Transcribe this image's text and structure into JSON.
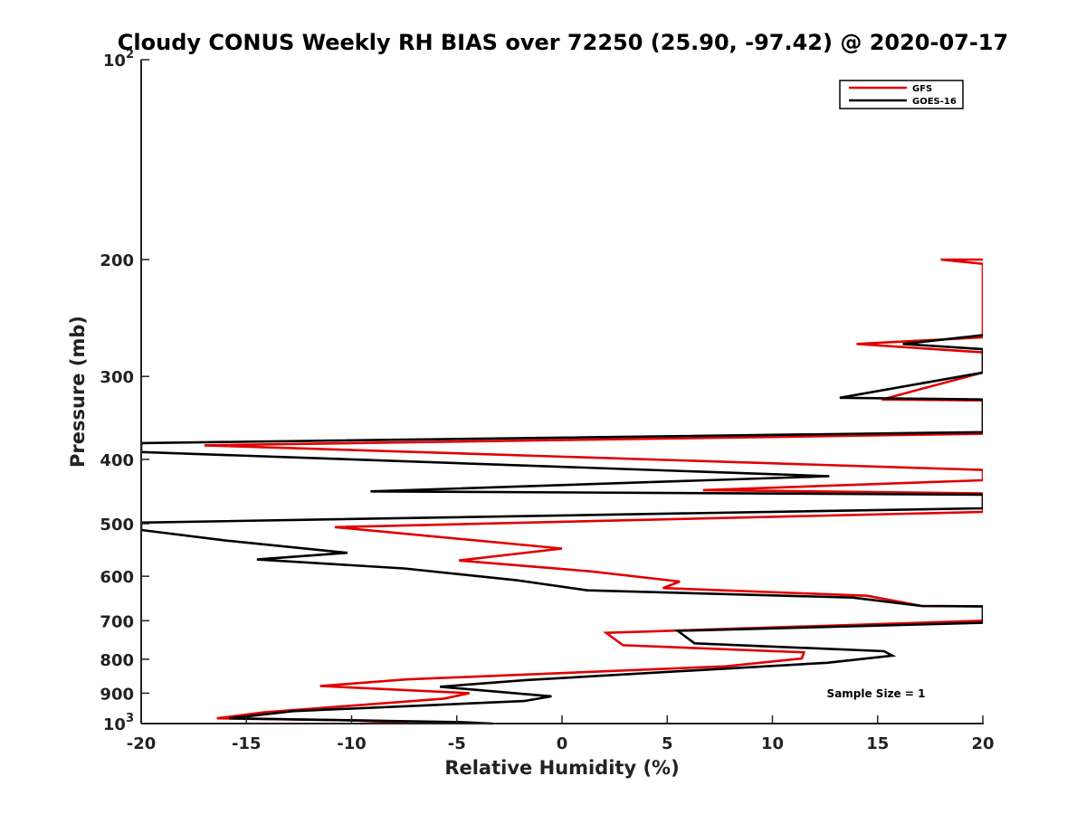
{
  "chart_data": {
    "type": "line",
    "title": "Cloudy CONUS Weekly RH BIAS over 72250 (25.90, -97.42) @ 2020-07-17",
    "xlabel": "Relative Humidity (%)",
    "ylabel": "Pressure (mb)",
    "xlim": [
      -20,
      20
    ],
    "ylim": [
      100,
      1000
    ],
    "y_scale": "log",
    "y_reversed": true,
    "x_ticks": [
      "-20",
      "-15",
      "-10",
      "-5",
      "0",
      "5",
      "10",
      "15",
      "20"
    ],
    "y_ticks": [
      {
        "value": 100,
        "base": "10",
        "exp": "2"
      },
      {
        "value": 200,
        "label": "200"
      },
      {
        "value": 300,
        "label": "300"
      },
      {
        "value": 400,
        "label": "400"
      },
      {
        "value": 500,
        "label": "500"
      },
      {
        "value": 600,
        "label": "600"
      },
      {
        "value": 700,
        "label": "700"
      },
      {
        "value": 800,
        "label": "800"
      },
      {
        "value": 900,
        "label": "900"
      },
      {
        "value": 1000,
        "base": "10",
        "exp": "3"
      }
    ],
    "grid": false,
    "legend_position": "top-right",
    "annotation": "Sample Size = 1",
    "series": [
      {
        "name": "GFS",
        "color": "#e00000",
        "points": [
          [
            20,
            200
          ],
          [
            18,
            200
          ],
          [
            20,
            203
          ],
          [
            20,
            262
          ],
          [
            14,
            268
          ],
          [
            20,
            276
          ],
          [
            20,
            296
          ],
          [
            15.2,
            325
          ],
          [
            20,
            326
          ],
          [
            20,
            366
          ],
          [
            -17,
            381
          ],
          [
            20,
            415
          ],
          [
            20,
            430
          ],
          [
            6.7,
            445
          ],
          [
            20,
            450
          ],
          [
            20,
            480
          ],
          [
            -10.8,
            506
          ],
          [
            0,
            545
          ],
          [
            -4.9,
            568
          ],
          [
            1.4,
            590
          ],
          [
            5.6,
            611
          ],
          [
            4.8,
            625
          ],
          [
            14.5,
            642
          ],
          [
            17.1,
            665
          ],
          [
            20,
            666
          ],
          [
            20,
            700
          ],
          [
            2.1,
            730
          ],
          [
            2.9,
            762
          ],
          [
            11.5,
            781
          ],
          [
            11.4,
            798
          ],
          [
            7.8,
            820
          ],
          [
            -7.4,
            858
          ],
          [
            -11.5,
            878
          ],
          [
            -4.4,
            900
          ],
          [
            -5.6,
            917
          ],
          [
            -14.2,
            962
          ],
          [
            -16.4,
            982
          ],
          [
            -8.8,
            990
          ],
          [
            -7.3,
            995
          ],
          [
            -9.6,
            1000
          ]
        ]
      },
      {
        "name": "GOES-16",
        "color": "#000000",
        "points": [
          [
            20,
            260
          ],
          [
            16.2,
            268
          ],
          [
            20,
            273
          ],
          [
            20,
            296
          ],
          [
            13.2,
            323
          ],
          [
            20,
            325
          ],
          [
            20,
            364
          ],
          [
            -20,
            378
          ],
          [
            -20,
            390
          ],
          [
            12.7,
            424
          ],
          [
            -9.1,
            447
          ],
          [
            20,
            452
          ],
          [
            20,
            474
          ],
          [
            -20,
            498
          ],
          [
            -20,
            511
          ],
          [
            -16,
            530
          ],
          [
            -10.2,
            553
          ],
          [
            -14.5,
            566
          ],
          [
            -7.5,
            584
          ],
          [
            -2.2,
            608
          ],
          [
            1.2,
            630
          ],
          [
            13.8,
            646
          ],
          [
            17.1,
            665
          ],
          [
            20,
            666
          ],
          [
            20,
            705
          ],
          [
            5.5,
            725
          ],
          [
            6.3,
            757
          ],
          [
            15.3,
            778
          ],
          [
            15.7,
            790
          ],
          [
            12.6,
            810
          ],
          [
            -1.7,
            860
          ],
          [
            -5.8,
            880
          ],
          [
            -0.5,
            910
          ],
          [
            -1.8,
            925
          ],
          [
            -12.8,
            958
          ],
          [
            -15.8,
            982
          ],
          [
            -9,
            990
          ],
          [
            -4.8,
            995
          ],
          [
            -3.3,
            1000
          ]
        ]
      }
    ]
  }
}
